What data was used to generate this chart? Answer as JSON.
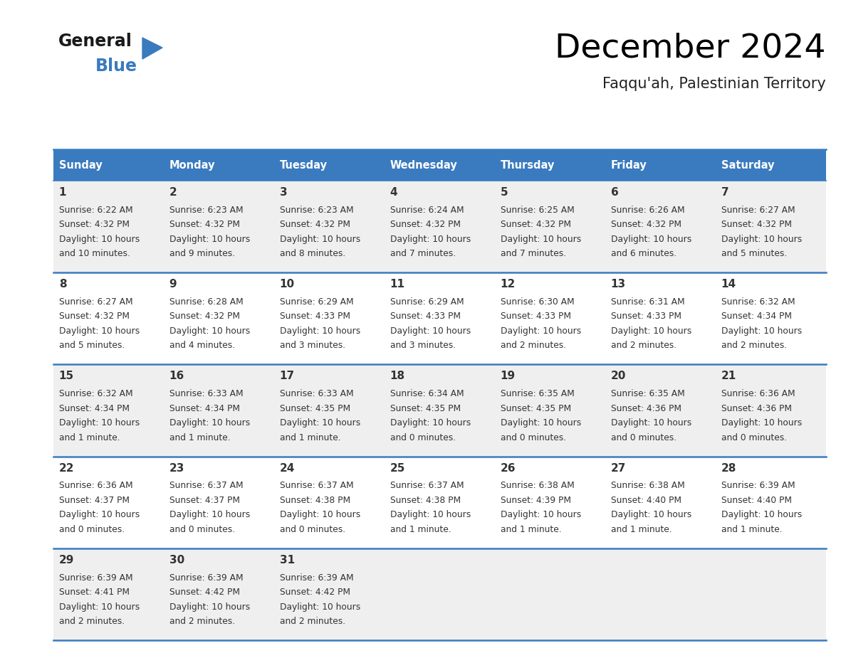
{
  "title": "December 2024",
  "subtitle": "Faqqu'ah, Palestinian Territory",
  "days_of_week": [
    "Sunday",
    "Monday",
    "Tuesday",
    "Wednesday",
    "Thursday",
    "Friday",
    "Saturday"
  ],
  "header_bg": "#3a7bbf",
  "header_text": "#ffffff",
  "row_bg_odd": "#efefef",
  "row_bg_even": "#ffffff",
  "border_color": "#3a7bbf",
  "text_color": "#333333",
  "calendar_data": [
    {
      "day": 1,
      "col": 0,
      "row": 0,
      "sunrise": "6:22 AM",
      "sunset": "4:32 PM",
      "daylight_h": "10 hours",
      "daylight_m": "and 10 minutes."
    },
    {
      "day": 2,
      "col": 1,
      "row": 0,
      "sunrise": "6:23 AM",
      "sunset": "4:32 PM",
      "daylight_h": "10 hours",
      "daylight_m": "and 9 minutes."
    },
    {
      "day": 3,
      "col": 2,
      "row": 0,
      "sunrise": "6:23 AM",
      "sunset": "4:32 PM",
      "daylight_h": "10 hours",
      "daylight_m": "and 8 minutes."
    },
    {
      "day": 4,
      "col": 3,
      "row": 0,
      "sunrise": "6:24 AM",
      "sunset": "4:32 PM",
      "daylight_h": "10 hours",
      "daylight_m": "and 7 minutes."
    },
    {
      "day": 5,
      "col": 4,
      "row": 0,
      "sunrise": "6:25 AM",
      "sunset": "4:32 PM",
      "daylight_h": "10 hours",
      "daylight_m": "and 7 minutes."
    },
    {
      "day": 6,
      "col": 5,
      "row": 0,
      "sunrise": "6:26 AM",
      "sunset": "4:32 PM",
      "daylight_h": "10 hours",
      "daylight_m": "and 6 minutes."
    },
    {
      "day": 7,
      "col": 6,
      "row": 0,
      "sunrise": "6:27 AM",
      "sunset": "4:32 PM",
      "daylight_h": "10 hours",
      "daylight_m": "and 5 minutes."
    },
    {
      "day": 8,
      "col": 0,
      "row": 1,
      "sunrise": "6:27 AM",
      "sunset": "4:32 PM",
      "daylight_h": "10 hours",
      "daylight_m": "and 5 minutes."
    },
    {
      "day": 9,
      "col": 1,
      "row": 1,
      "sunrise": "6:28 AM",
      "sunset": "4:32 PM",
      "daylight_h": "10 hours",
      "daylight_m": "and 4 minutes."
    },
    {
      "day": 10,
      "col": 2,
      "row": 1,
      "sunrise": "6:29 AM",
      "sunset": "4:33 PM",
      "daylight_h": "10 hours",
      "daylight_m": "and 3 minutes."
    },
    {
      "day": 11,
      "col": 3,
      "row": 1,
      "sunrise": "6:29 AM",
      "sunset": "4:33 PM",
      "daylight_h": "10 hours",
      "daylight_m": "and 3 minutes."
    },
    {
      "day": 12,
      "col": 4,
      "row": 1,
      "sunrise": "6:30 AM",
      "sunset": "4:33 PM",
      "daylight_h": "10 hours",
      "daylight_m": "and 2 minutes."
    },
    {
      "day": 13,
      "col": 5,
      "row": 1,
      "sunrise": "6:31 AM",
      "sunset": "4:33 PM",
      "daylight_h": "10 hours",
      "daylight_m": "and 2 minutes."
    },
    {
      "day": 14,
      "col": 6,
      "row": 1,
      "sunrise": "6:32 AM",
      "sunset": "4:34 PM",
      "daylight_h": "10 hours",
      "daylight_m": "and 2 minutes."
    },
    {
      "day": 15,
      "col": 0,
      "row": 2,
      "sunrise": "6:32 AM",
      "sunset": "4:34 PM",
      "daylight_h": "10 hours",
      "daylight_m": "and 1 minute."
    },
    {
      "day": 16,
      "col": 1,
      "row": 2,
      "sunrise": "6:33 AM",
      "sunset": "4:34 PM",
      "daylight_h": "10 hours",
      "daylight_m": "and 1 minute."
    },
    {
      "day": 17,
      "col": 2,
      "row": 2,
      "sunrise": "6:33 AM",
      "sunset": "4:35 PM",
      "daylight_h": "10 hours",
      "daylight_m": "and 1 minute."
    },
    {
      "day": 18,
      "col": 3,
      "row": 2,
      "sunrise": "6:34 AM",
      "sunset": "4:35 PM",
      "daylight_h": "10 hours",
      "daylight_m": "and 0 minutes."
    },
    {
      "day": 19,
      "col": 4,
      "row": 2,
      "sunrise": "6:35 AM",
      "sunset": "4:35 PM",
      "daylight_h": "10 hours",
      "daylight_m": "and 0 minutes."
    },
    {
      "day": 20,
      "col": 5,
      "row": 2,
      "sunrise": "6:35 AM",
      "sunset": "4:36 PM",
      "daylight_h": "10 hours",
      "daylight_m": "and 0 minutes."
    },
    {
      "day": 21,
      "col": 6,
      "row": 2,
      "sunrise": "6:36 AM",
      "sunset": "4:36 PM",
      "daylight_h": "10 hours",
      "daylight_m": "and 0 minutes."
    },
    {
      "day": 22,
      "col": 0,
      "row": 3,
      "sunrise": "6:36 AM",
      "sunset": "4:37 PM",
      "daylight_h": "10 hours",
      "daylight_m": "and 0 minutes."
    },
    {
      "day": 23,
      "col": 1,
      "row": 3,
      "sunrise": "6:37 AM",
      "sunset": "4:37 PM",
      "daylight_h": "10 hours",
      "daylight_m": "and 0 minutes."
    },
    {
      "day": 24,
      "col": 2,
      "row": 3,
      "sunrise": "6:37 AM",
      "sunset": "4:38 PM",
      "daylight_h": "10 hours",
      "daylight_m": "and 0 minutes."
    },
    {
      "day": 25,
      "col": 3,
      "row": 3,
      "sunrise": "6:37 AM",
      "sunset": "4:38 PM",
      "daylight_h": "10 hours",
      "daylight_m": "and 1 minute."
    },
    {
      "day": 26,
      "col": 4,
      "row": 3,
      "sunrise": "6:38 AM",
      "sunset": "4:39 PM",
      "daylight_h": "10 hours",
      "daylight_m": "and 1 minute."
    },
    {
      "day": 27,
      "col": 5,
      "row": 3,
      "sunrise": "6:38 AM",
      "sunset": "4:40 PM",
      "daylight_h": "10 hours",
      "daylight_m": "and 1 minute."
    },
    {
      "day": 28,
      "col": 6,
      "row": 3,
      "sunrise": "6:39 AM",
      "sunset": "4:40 PM",
      "daylight_h": "10 hours",
      "daylight_m": "and 1 minute."
    },
    {
      "day": 29,
      "col": 0,
      "row": 4,
      "sunrise": "6:39 AM",
      "sunset": "4:41 PM",
      "daylight_h": "10 hours",
      "daylight_m": "and 2 minutes."
    },
    {
      "day": 30,
      "col": 1,
      "row": 4,
      "sunrise": "6:39 AM",
      "sunset": "4:42 PM",
      "daylight_h": "10 hours",
      "daylight_m": "and 2 minutes."
    },
    {
      "day": 31,
      "col": 2,
      "row": 4,
      "sunrise": "6:39 AM",
      "sunset": "4:42 PM",
      "daylight_h": "10 hours",
      "daylight_m": "and 2 minutes."
    }
  ],
  "num_rows": 5,
  "num_cols": 7
}
